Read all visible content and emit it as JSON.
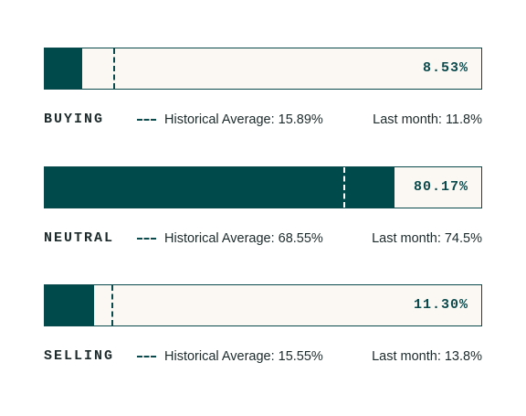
{
  "chart_data": {
    "type": "bar",
    "orientation": "horizontal",
    "xlim": [
      0,
      100
    ],
    "colors": {
      "fill": "#004a4c",
      "track": "#fbf8f4",
      "line_on_track": "#0b4a4c",
      "line_on_fill": "#ffffff"
    },
    "rows": [
      {
        "label": "BUYING",
        "value": 8.53,
        "value_label": "8.53%",
        "avg": 15.89,
        "avg_label": "Historical Average: 15.89%",
        "last_label": "Last month: 11.8%"
      },
      {
        "label": "NEUTRAL",
        "value": 80.17,
        "value_label": "80.17%",
        "avg": 68.55,
        "avg_label": "Historical Average: 68.55%",
        "last_label": "Last month: 74.5%"
      },
      {
        "label": "SELLING",
        "value": 11.3,
        "value_label": "11.30%",
        "avg": 15.55,
        "avg_label": "Historical Average: 15.55%",
        "last_label": "Last month: 13.8%"
      }
    ]
  }
}
